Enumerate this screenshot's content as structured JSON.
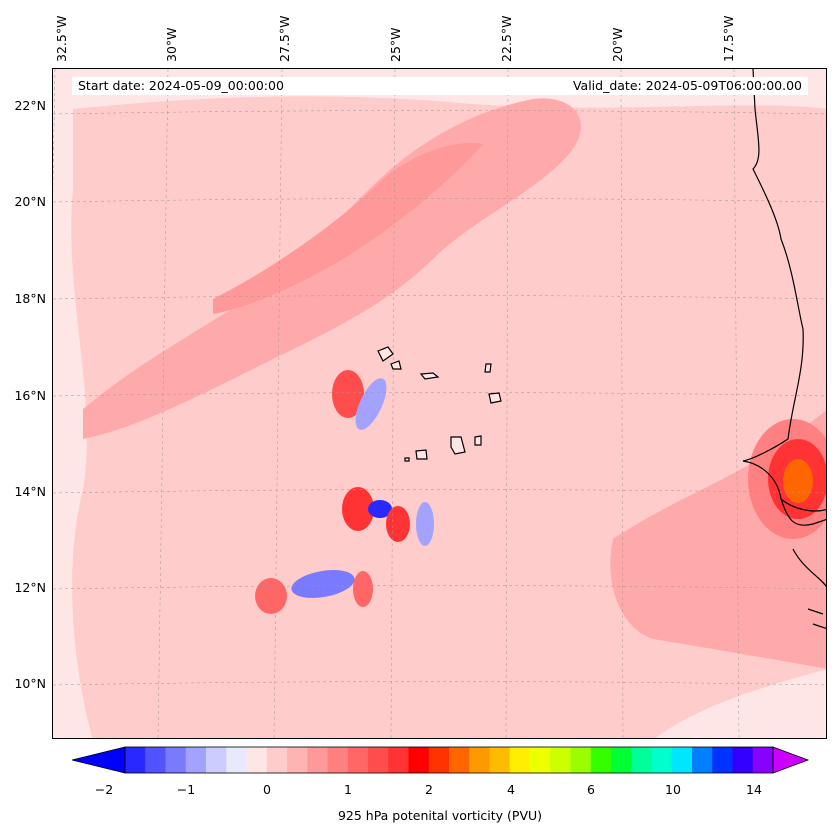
{
  "header": {
    "start_date": "Start date: 2024-05-09_00:00:00",
    "valid_date": "Valid_date: 2024-05-09T06:00:00.00"
  },
  "axes": {
    "lon_labels": [
      "32.5°W",
      "30°W",
      "27.5°W",
      "25°W",
      "22.5°W",
      "20°W",
      "17.5°W"
    ],
    "lat_labels": [
      "22°N",
      "20°N",
      "18°N",
      "16°N",
      "14°N",
      "12°N",
      "10°N"
    ]
  },
  "colorbar": {
    "label": "925 hPa potenital vorticity (PVU)",
    "ticks": [
      "−2",
      "−1",
      "0",
      "1",
      "2",
      "4",
      "6",
      "10",
      "14"
    ],
    "colors": [
      "#0000ff",
      "#2929ff",
      "#5252ff",
      "#7a7aff",
      "#a3a3ff",
      "#ccccff",
      "#e8e8ff",
      "#ffe6e6",
      "#ffcccc",
      "#ffb3b3",
      "#ff9999",
      "#ff8080",
      "#ff6666",
      "#ff4d4d",
      "#ff3333",
      "#ff0000",
      "#ff3300",
      "#ff6600",
      "#ff9900",
      "#ffbb00",
      "#ffee00",
      "#eeff00",
      "#ccff00",
      "#99ff00",
      "#33ff00",
      "#00ff33",
      "#00ff99",
      "#00ffcc",
      "#00e6ff",
      "#0080ff",
      "#0033ff",
      "#3300ff",
      "#8800ff",
      "#cc00ff"
    ]
  },
  "colors": {
    "background_pv": "#ffe6e6",
    "light_pink": "#ffcccc",
    "mid_pink": "#ffaaaa",
    "red": "#ff4d4d",
    "blue": "#7a7aff",
    "coast": "#000000"
  }
}
